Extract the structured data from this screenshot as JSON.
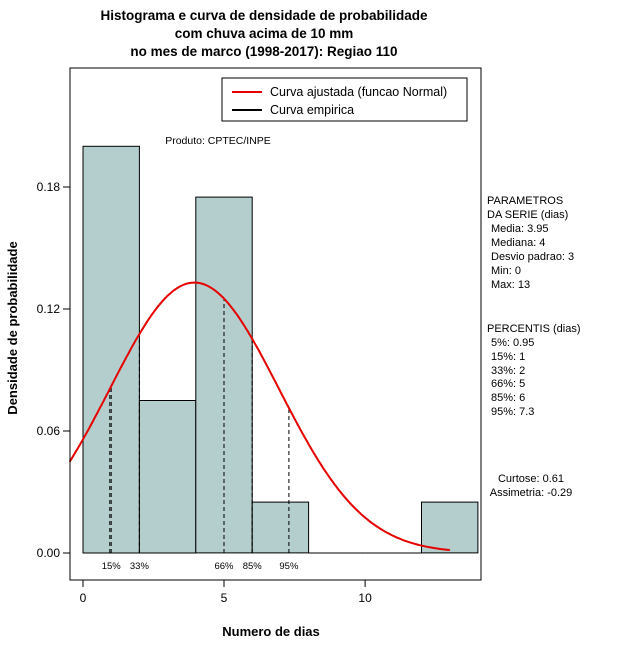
{
  "title": {
    "line1": "Histograma e curva de densidade de probabilidade",
    "line2": "com chuva acima de 10 mm",
    "line3": "no mes de marco (1998-2017): Regiao 110"
  },
  "chart_data": {
    "type": "bar",
    "subtype": "histogram-with-density-curve",
    "xlabel": "Numero de dias",
    "ylabel": "Densidade de probabilidade",
    "annotation": "Produto: CPTEC/INPE",
    "xlim": [
      -0.46,
      14.11
    ],
    "ylim": [
      -0.0133,
      0.2385
    ],
    "x_ticks": [
      0,
      5,
      10
    ],
    "y_ticks": [
      0,
      0.06,
      0.12,
      0.18
    ],
    "y_tick_labels": [
      "0.00",
      "0.06",
      "0.12",
      "0.18"
    ],
    "grid": "off",
    "bar_color": "#b4cdcd",
    "bars": [
      {
        "x0": 0,
        "x1": 2,
        "density": 0.2
      },
      {
        "x0": 2,
        "x1": 4,
        "density": 0.075
      },
      {
        "x0": 4,
        "x1": 6,
        "density": 0.175
      },
      {
        "x0": 6,
        "x1": 8,
        "density": 0.025
      },
      {
        "x0": 8,
        "x1": 10,
        "density": 0
      },
      {
        "x0": 10,
        "x1": 12,
        "density": 0
      },
      {
        "x0": 12,
        "x1": 14,
        "density": 0.025
      }
    ],
    "normal_curve": {
      "mean": 3.95,
      "sd": 3,
      "color": "#e60000",
      "x_start": -0.46,
      "x_end": 13.0
    },
    "percentile_lines": [
      {
        "label": "",
        "x": 0.95
      },
      {
        "label": "15%",
        "x": 1
      },
      {
        "label": "33%",
        "x": 2
      },
      {
        "label": "66%",
        "x": 5
      },
      {
        "label": "85%",
        "x": 6
      },
      {
        "label": "95%",
        "x": 7.3
      }
    ],
    "legend": [
      {
        "label": "Curva ajustada (funcao Normal)",
        "color": "#e60000"
      },
      {
        "label": "Curva empirica",
        "color": "#000000"
      }
    ]
  },
  "side_panel": {
    "params_header1": "PARAMETROS",
    "params_header2": "DA SERIE (dias)",
    "params": [
      "Media: 3.95",
      "Mediana: 4",
      "Desvio padrao: 3",
      "Min: 0",
      "Max: 13"
    ],
    "percentis_header": "PERCENTIS (dias)",
    "percentis": [
      "5%: 0.95",
      "15%: 1",
      "33%: 2",
      "66%: 5",
      "85%: 6",
      "95%: 7.3"
    ],
    "curtose": "Curtose: 0.61",
    "assimetria": "Assimetria: -0.29"
  }
}
